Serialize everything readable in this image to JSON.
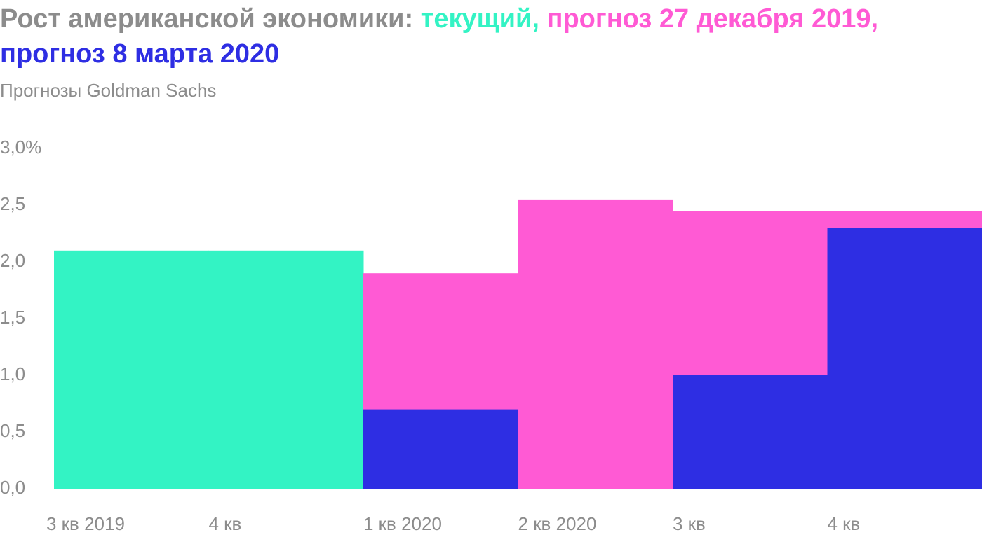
{
  "chart_data": {
    "type": "bar",
    "title": "Рост американской экономики:",
    "subtitle": "Прогнозы Goldman Sachs",
    "categories": [
      "3 кв 2019",
      "4 кв",
      "1 кв 2020",
      "2 кв 2020",
      "3 кв",
      "4 кв"
    ],
    "series": [
      {
        "name": "текущий,",
        "color": "#33f3c4",
        "values": [
          2.1,
          2.1,
          null,
          null,
          null,
          null
        ]
      },
      {
        "name": "прогноз 27 декабря 2019,",
        "color": "#ff5ad4",
        "values": [
          null,
          null,
          1.9,
          2.55,
          2.45,
          2.45
        ]
      },
      {
        "name": "прогноз 8 марта 2020",
        "color": "#2e2ee3",
        "values": [
          null,
          null,
          0.7,
          0,
          1.0,
          2.3
        ]
      }
    ],
    "ylim": [
      0,
      3
    ],
    "yticks": [
      {
        "value": 0,
        "label": "0,0"
      },
      {
        "value": 0.5,
        "label": "0,5"
      },
      {
        "value": 1,
        "label": "1,0"
      },
      {
        "value": 1.5,
        "label": "1,5"
      },
      {
        "value": 2,
        "label": "2,0"
      },
      {
        "value": 2.5,
        "label": "2,5"
      },
      {
        "value": 3,
        "label": "3,0%"
      }
    ],
    "grid": false
  }
}
